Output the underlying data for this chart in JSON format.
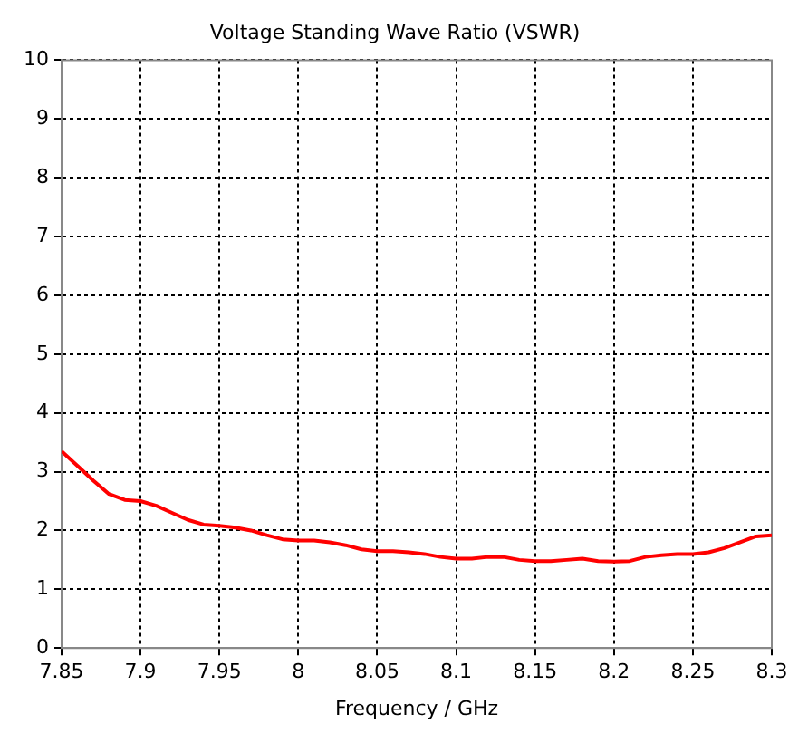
{
  "chart_data": {
    "type": "line",
    "title": "Voltage Standing Wave Ratio (VSWR)",
    "xlabel": "Frequency / GHz",
    "x": [
      7.85,
      7.86,
      7.87,
      7.88,
      7.89,
      7.9,
      7.91,
      7.92,
      7.93,
      7.94,
      7.95,
      7.96,
      7.97,
      7.98,
      7.99,
      8.0,
      8.01,
      8.02,
      8.03,
      8.04,
      8.05,
      8.06,
      8.07,
      8.08,
      8.09,
      8.1,
      8.11,
      8.12,
      8.13,
      8.14,
      8.15,
      8.16,
      8.17,
      8.18,
      8.19,
      8.2,
      8.21,
      8.22,
      8.23,
      8.24,
      8.25,
      8.26,
      8.27,
      8.28,
      8.29,
      8.3
    ],
    "series": [
      {
        "color": "#ff0000",
        "values": [
          3.35,
          3.1,
          2.85,
          2.62,
          2.52,
          2.5,
          2.42,
          2.3,
          2.18,
          2.1,
          2.08,
          2.05,
          2.0,
          1.92,
          1.85,
          1.83,
          1.83,
          1.8,
          1.75,
          1.68,
          1.65,
          1.65,
          1.63,
          1.6,
          1.55,
          1.52,
          1.52,
          1.55,
          1.55,
          1.5,
          1.48,
          1.48,
          1.5,
          1.52,
          1.48,
          1.47,
          1.48,
          1.55,
          1.58,
          1.6,
          1.6,
          1.63,
          1.7,
          1.8,
          1.9,
          1.92
        ]
      }
    ],
    "xlim": [
      7.85,
      8.3
    ],
    "xticks": [
      7.85,
      7.9,
      7.95,
      8,
      8.05,
      8.1,
      8.15,
      8.2,
      8.25,
      8.3
    ],
    "ylim": [
      0,
      10
    ],
    "yticks": [
      0,
      1,
      2,
      3,
      4,
      5,
      6,
      7,
      8,
      9,
      10
    ],
    "grid": true,
    "legend": false,
    "marker": "none",
    "line_style": "solid"
  }
}
